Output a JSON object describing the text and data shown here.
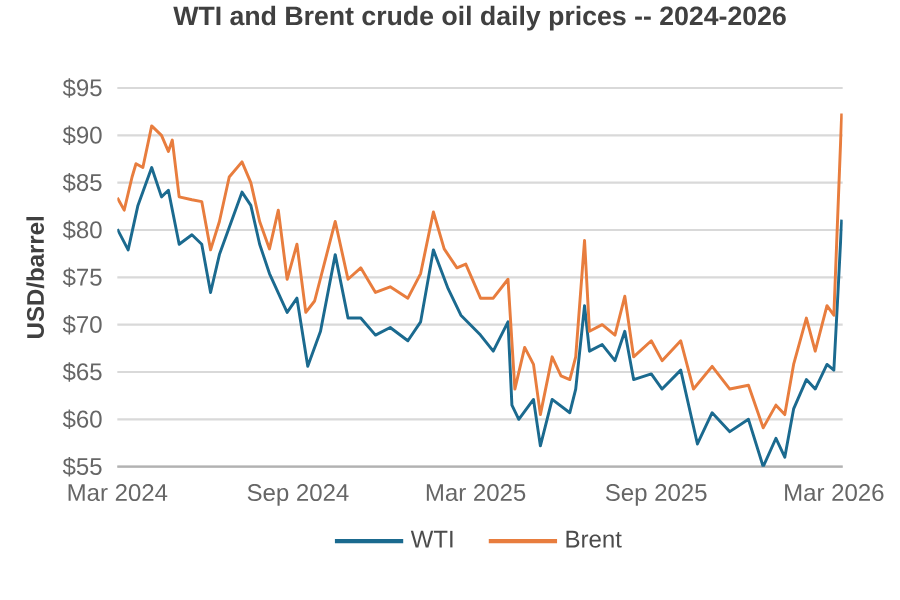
{
  "chart_data": {
    "type": "line",
    "title": "WTI and Brent crude oil daily prices -- 2024-2026",
    "ylabel": "USD/barrel",
    "xlim": [
      "2024-03-01",
      "2026-03-10"
    ],
    "xticks": [
      {
        "value": "2024-03-01",
        "label": "Mar 2024"
      },
      {
        "value": "2024-09-01",
        "label": "Sep 2024"
      },
      {
        "value": "2025-03-01",
        "label": "Mar 2025"
      },
      {
        "value": "2025-09-01",
        "label": "Sep 2025"
      },
      {
        "value": "2026-03-01",
        "label": "Mar 2026"
      }
    ],
    "ylim": [
      55,
      95
    ],
    "yticks": [
      {
        "value": 55,
        "label": "$55"
      },
      {
        "value": 60,
        "label": "$60"
      },
      {
        "value": 65,
        "label": "$65"
      },
      {
        "value": 70,
        "label": "$70"
      },
      {
        "value": 75,
        "label": "$75"
      },
      {
        "value": 80,
        "label": "$80"
      },
      {
        "value": 85,
        "label": "$85"
      },
      {
        "value": 90,
        "label": "$90"
      },
      {
        "value": 95,
        "label": "$95"
      }
    ],
    "grid": "y",
    "legend": "bottom",
    "series": [
      {
        "name": "WTI",
        "color": "#1b6a8f",
        "x": [
          "2024-03-01",
          "2024-03-12",
          "2024-03-22",
          "2024-04-05",
          "2024-04-15",
          "2024-04-22",
          "2024-05-03",
          "2024-05-16",
          "2024-05-26",
          "2024-06-04",
          "2024-06-13",
          "2024-07-06",
          "2024-07-15",
          "2024-07-24",
          "2024-08-03",
          "2024-08-21",
          "2024-08-31",
          "2024-09-11",
          "2024-09-24",
          "2024-10-09",
          "2024-10-22",
          "2024-11-04",
          "2024-11-19",
          "2024-12-04",
          "2024-12-22",
          "2025-01-04",
          "2025-01-17",
          "2025-02-01",
          "2025-02-14",
          "2025-03-06",
          "2025-03-19",
          "2025-04-03",
          "2025-04-07",
          "2025-04-14",
          "2025-04-29",
          "2025-05-06",
          "2025-05-18",
          "2025-06-05",
          "2025-06-11",
          "2025-06-20",
          "2025-06-25",
          "2025-07-08",
          "2025-07-21",
          "2025-07-31",
          "2025-08-09",
          "2025-08-27",
          "2025-09-07",
          "2025-09-26",
          "2025-10-13",
          "2025-10-28",
          "2025-11-15",
          "2025-12-04",
          "2025-12-19",
          "2026-01-01",
          "2026-01-10",
          "2026-01-19",
          "2026-02-01",
          "2026-02-10",
          "2026-02-22",
          "2026-03-01",
          "2026-03-05",
          "2026-03-09"
        ],
        "values": [
          80.1,
          77.9,
          82.6,
          86.6,
          83.5,
          84.2,
          78.5,
          79.5,
          78.5,
          73.4,
          77.4,
          84.0,
          82.6,
          78.5,
          75.4,
          71.3,
          72.8,
          65.6,
          69.3,
          77.4,
          70.7,
          70.7,
          68.9,
          69.7,
          68.3,
          70.3,
          77.9,
          73.8,
          71.0,
          68.9,
          67.2,
          70.3,
          61.5,
          60.0,
          62.1,
          57.2,
          62.1,
          60.7,
          63.2,
          72.0,
          67.2,
          67.9,
          66.2,
          69.3,
          64.2,
          64.8,
          63.2,
          65.2,
          57.4,
          60.7,
          58.7,
          60.0,
          55.0,
          58.0,
          56.0,
          61.1,
          64.2,
          63.2,
          65.8,
          65.2,
          73.0,
          81.1
        ]
      },
      {
        "name": "Brent",
        "color": "#e87d3e",
        "x": [
          "2024-03-01",
          "2024-03-08",
          "2024-03-16",
          "2024-03-20",
          "2024-03-27",
          "2024-04-05",
          "2024-04-15",
          "2024-04-22",
          "2024-04-26",
          "2024-05-03",
          "2024-05-16",
          "2024-05-26",
          "2024-06-04",
          "2024-06-13",
          "2024-06-23",
          "2024-07-06",
          "2024-07-15",
          "2024-07-24",
          "2024-08-03",
          "2024-08-12",
          "2024-08-21",
          "2024-08-31",
          "2024-09-09",
          "2024-09-18",
          "2024-10-09",
          "2024-10-22",
          "2024-11-04",
          "2024-11-19",
          "2024-12-04",
          "2024-12-22",
          "2025-01-04",
          "2025-01-17",
          "2025-01-28",
          "2025-02-10",
          "2025-02-19",
          "2025-03-06",
          "2025-03-19",
          "2025-04-03",
          "2025-04-10",
          "2025-04-20",
          "2025-04-29",
          "2025-05-06",
          "2025-05-18",
          "2025-05-27",
          "2025-06-05",
          "2025-06-11",
          "2025-06-20",
          "2025-06-25",
          "2025-07-08",
          "2025-07-21",
          "2025-07-31",
          "2025-08-09",
          "2025-08-27",
          "2025-09-07",
          "2025-09-26",
          "2025-10-09",
          "2025-10-28",
          "2025-11-15",
          "2025-12-04",
          "2025-12-19",
          "2026-01-01",
          "2026-01-10",
          "2026-01-19",
          "2026-02-01",
          "2026-02-10",
          "2026-02-22",
          "2026-03-01",
          "2026-03-09"
        ],
        "values": [
          83.4,
          82.1,
          85.6,
          87.0,
          86.6,
          91.0,
          90.0,
          88.3,
          89.5,
          83.5,
          83.2,
          83.0,
          77.9,
          80.9,
          85.6,
          87.2,
          85.0,
          80.9,
          78.0,
          82.1,
          74.8,
          78.5,
          71.3,
          72.5,
          80.9,
          74.8,
          76.0,
          73.4,
          74.0,
          72.8,
          75.4,
          81.9,
          78.0,
          76.0,
          76.4,
          72.8,
          72.8,
          74.8,
          63.2,
          67.6,
          65.8,
          60.5,
          66.6,
          64.6,
          64.2,
          66.6,
          78.9,
          69.3,
          70.0,
          68.9,
          73.0,
          66.6,
          68.3,
          66.2,
          68.3,
          63.2,
          65.6,
          63.2,
          63.6,
          59.1,
          61.5,
          60.5,
          65.8,
          70.7,
          67.2,
          72.0,
          71.0,
          92.3
        ]
      }
    ]
  }
}
